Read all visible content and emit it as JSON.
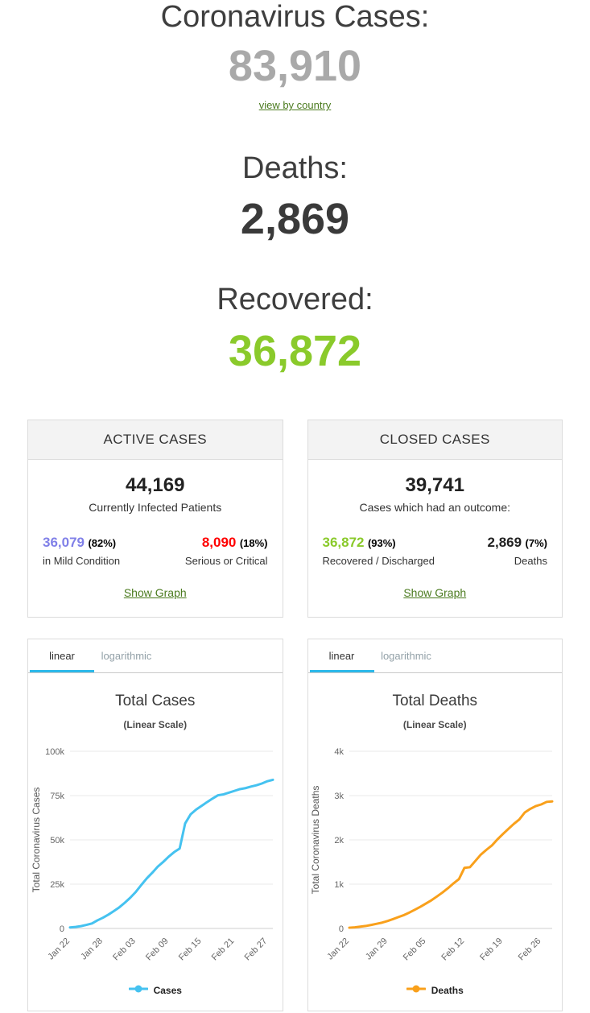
{
  "header": {
    "cases_label": "Coronavirus Cases:",
    "cases_value": "83,910",
    "view_by_country_link": "view by country",
    "deaths_label": "Deaths:",
    "deaths_value": "2,869",
    "recovered_label": "Recovered:",
    "recovered_value": "36,872"
  },
  "active_panel": {
    "title": "ACTIVE CASES",
    "total": "44,169",
    "total_caption": "Currently Infected Patients",
    "mild": {
      "value": "36,079",
      "pct": "(82%)",
      "label": "in Mild Condition"
    },
    "serious": {
      "value": "8,090",
      "pct": "(18%)",
      "label": "Serious or Critical"
    },
    "show_graph_link": "Show Graph"
  },
  "closed_panel": {
    "title": "CLOSED CASES",
    "total": "39,741",
    "total_caption": "Cases which had an outcome:",
    "recovered": {
      "value": "36,872",
      "pct": "(93%)",
      "label": "Recovered / Discharged"
    },
    "deaths": {
      "value": "2,869",
      "pct": "(7%)",
      "label": "Deaths"
    },
    "show_graph_link": "Show Graph"
  },
  "colors": {
    "cases_total_gray": "#a9a9a9",
    "recovered_green": "#8aca2b",
    "mild_blue": "#8080e8",
    "serious_red": "#ff0000",
    "link_green": "#4b7b1f",
    "active_tab_underline": "#2cb9ea",
    "cases_line": "#45c2f0",
    "deaths_line": "#f9a01b"
  },
  "chart_data": [
    {
      "type": "line",
      "title": "Total Cases",
      "subtitle": "(Linear Scale)",
      "tabs": [
        "linear",
        "logarithmic"
      ],
      "active_tab": "linear",
      "legend": "Cases",
      "color": "#45c2f0",
      "ylabel": "Total Coronavirus Cases",
      "ylim": [
        0,
        100000
      ],
      "y_ticks": [
        0,
        25000,
        50000,
        75000,
        100000
      ],
      "y_tick_labels": [
        "0",
        "25k",
        "50k",
        "75k",
        "100k"
      ],
      "x_unit": "day",
      "x_range": [
        "Jan 22",
        "Feb 28"
      ],
      "x_tick_labels": [
        "Jan 22",
        "Jan 28",
        "Feb 03",
        "Feb 09",
        "Feb 15",
        "Feb 21",
        "Feb 27"
      ],
      "x_tick_indices": [
        0,
        6,
        12,
        18,
        24,
        30,
        36
      ],
      "grid": "horizontal",
      "legend_position": "bottom",
      "values": [
        580,
        845,
        1317,
        2015,
        2800,
        4581,
        6058,
        7813,
        9823,
        11950,
        14553,
        17391,
        20630,
        24545,
        28266,
        31439,
        34876,
        37552,
        40553,
        43099,
        45134,
        59287,
        64438,
        67100,
        69197,
        71329,
        73332,
        75184,
        75700,
        76677,
        77673,
        78651,
        79205,
        80087,
        80828,
        81820,
        83112,
        83910
      ]
    },
    {
      "type": "line",
      "title": "Total Deaths",
      "subtitle": "(Linear Scale)",
      "tabs": [
        "linear",
        "logarithmic"
      ],
      "active_tab": "linear",
      "legend": "Deaths",
      "color": "#f9a01b",
      "ylabel": "Total Coronavirus Deaths",
      "ylim": [
        0,
        4000
      ],
      "y_ticks": [
        0,
        1000,
        2000,
        3000,
        4000
      ],
      "y_tick_labels": [
        "0",
        "1k",
        "2k",
        "3k",
        "4k"
      ],
      "x_unit": "day",
      "x_range": [
        "Jan 22",
        "Feb 28"
      ],
      "x_tick_labels": [
        "Jan 22",
        "Jan 29",
        "Feb 05",
        "Feb 12",
        "Feb 19",
        "Feb 26"
      ],
      "x_tick_indices": [
        0,
        7,
        14,
        21,
        28,
        35
      ],
      "grid": "horizontal",
      "legend_position": "bottom",
      "values": [
        17,
        25,
        41,
        56,
        80,
        106,
        132,
        170,
        213,
        259,
        304,
        362,
        426,
        492,
        565,
        638,
        724,
        813,
        910,
        1018,
        1115,
        1369,
        1383,
        1526,
        1669,
        1775,
        1873,
        2009,
        2130,
        2247,
        2360,
        2460,
        2618,
        2699,
        2763,
        2800,
        2858,
        2869
      ]
    }
  ]
}
